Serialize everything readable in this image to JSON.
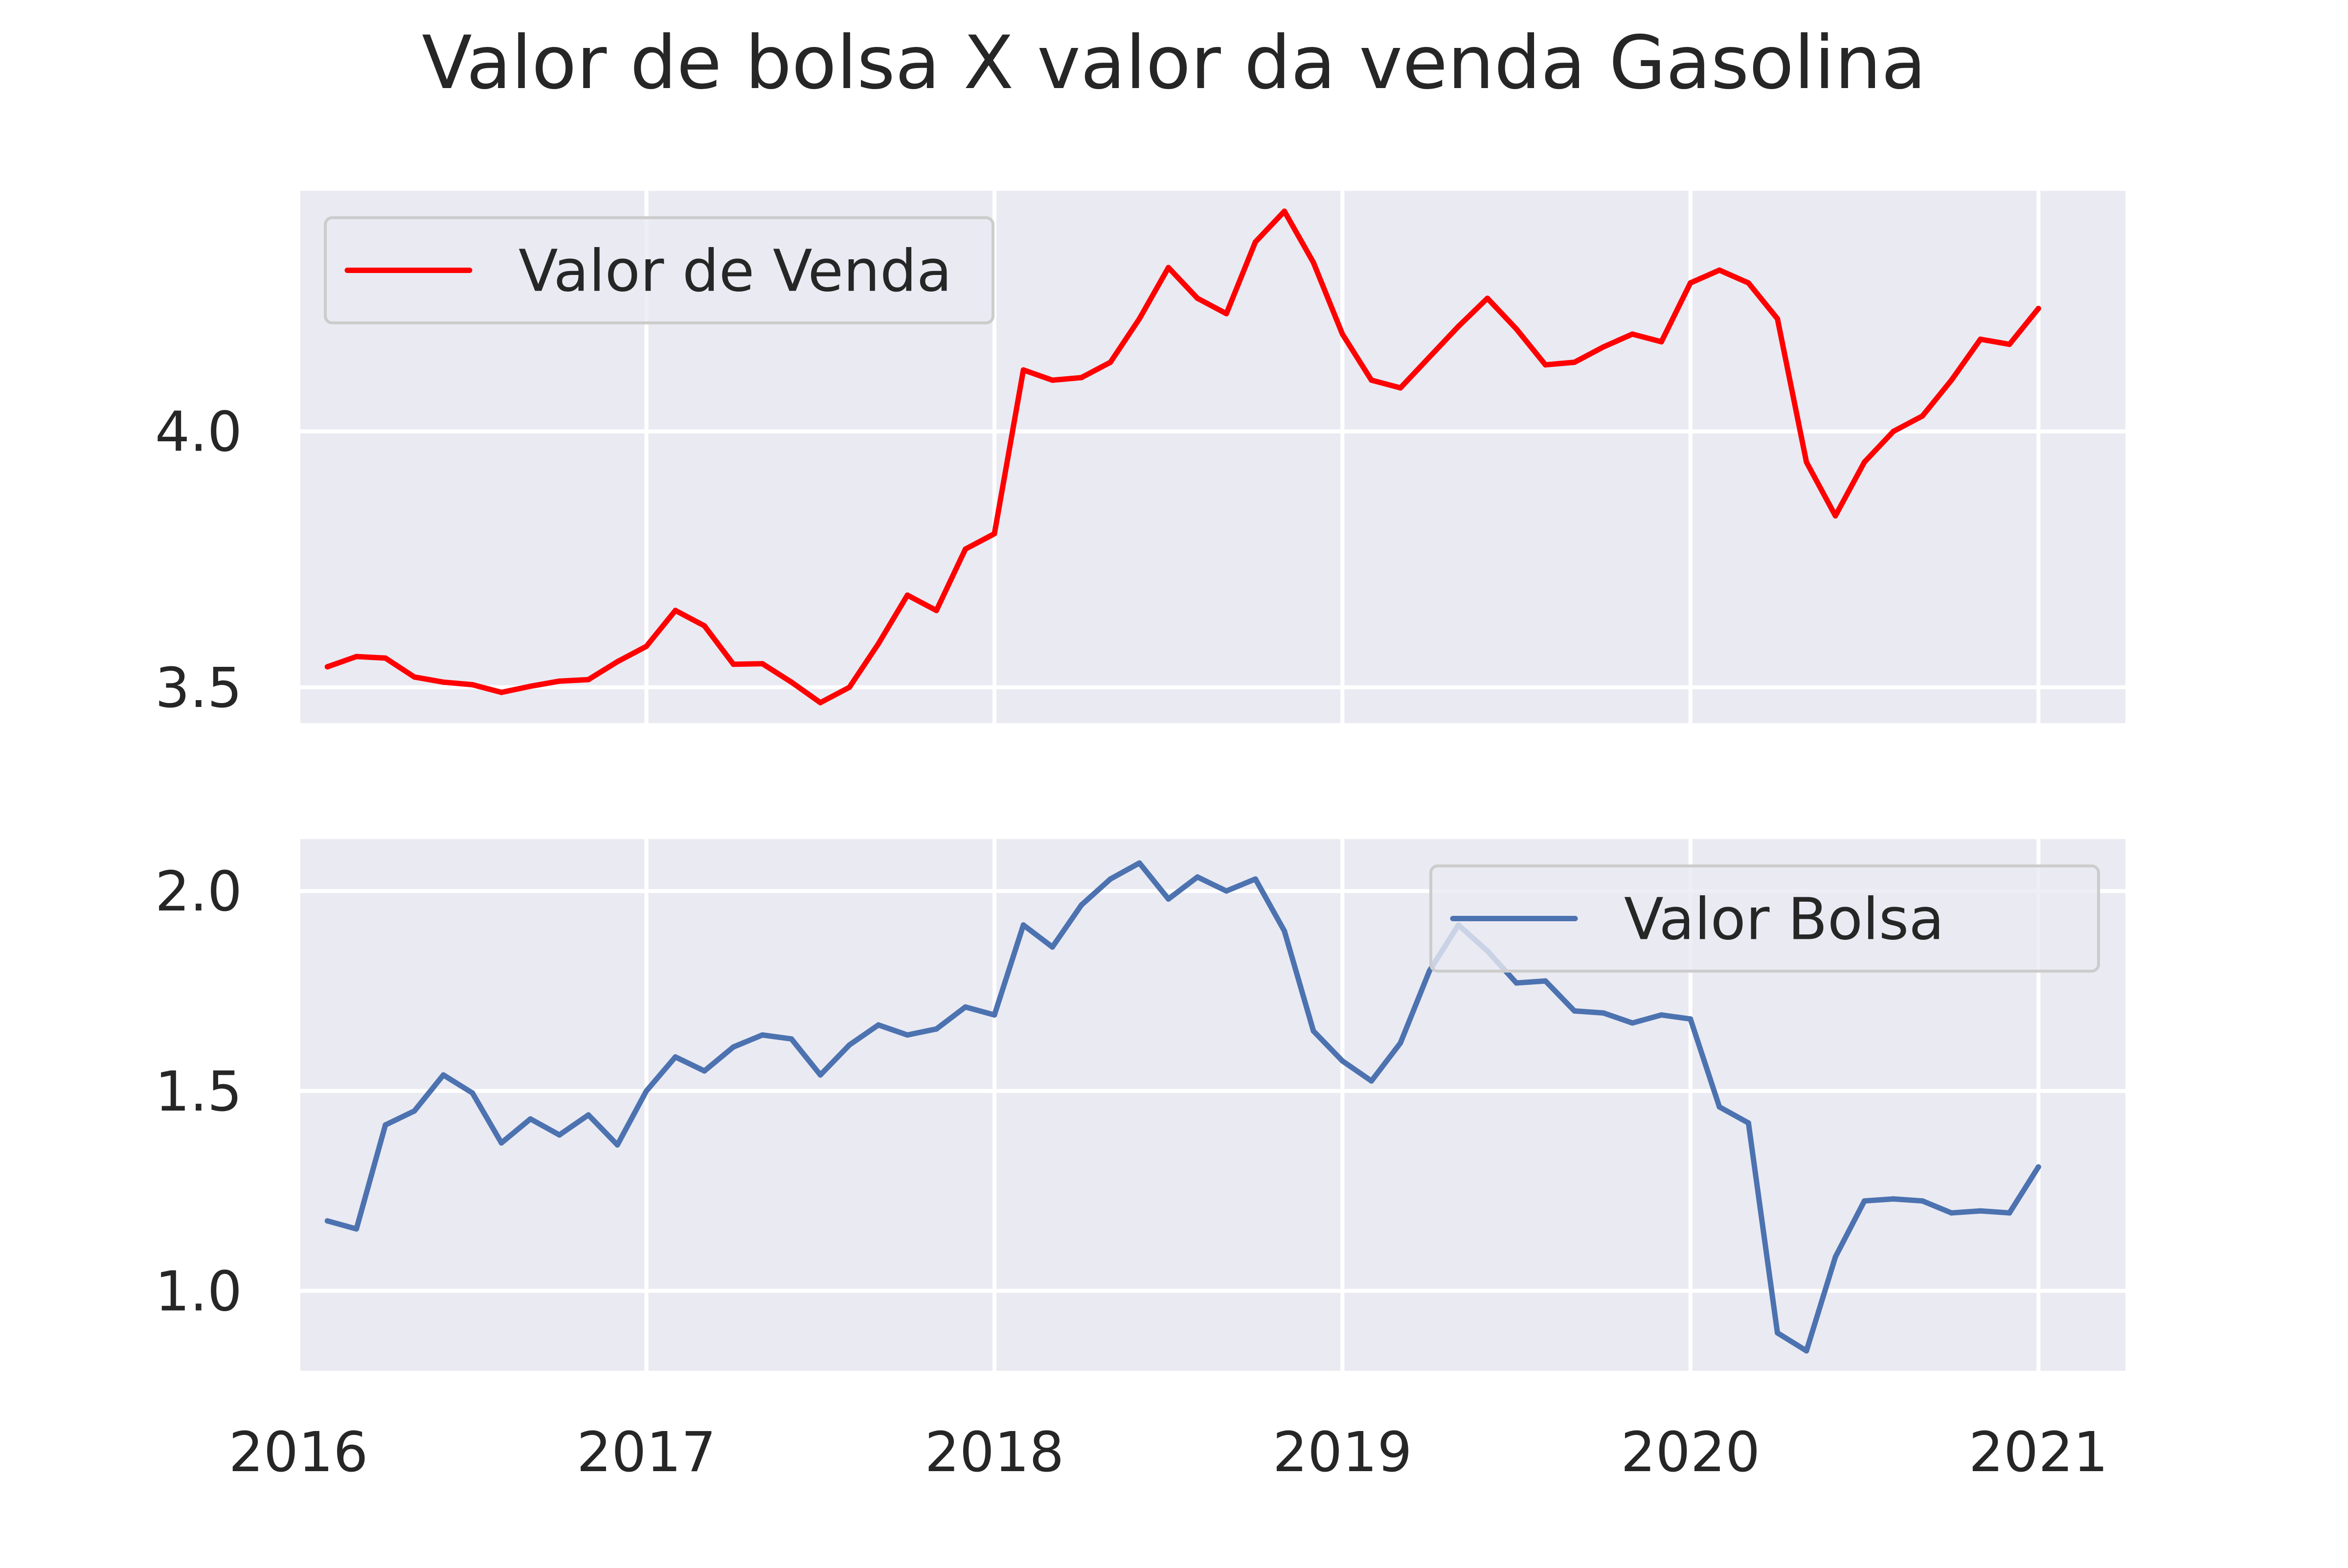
{
  "chart_data": {
    "type": "line",
    "title": "Valor de bolsa X valor da venda Gasolina",
    "x_ticks": [
      "2016",
      "2017",
      "2018",
      "2019",
      "2020",
      "2021"
    ],
    "x_start": "2016-02",
    "x_end": "2021-01",
    "x_step": "1 month",
    "x_range": [
      "2016-01",
      "2021-04"
    ],
    "grid": true,
    "background": "#eaeaf2",
    "subplots": [
      {
        "name": "venda",
        "ylim": [
          3.43,
          4.47
        ],
        "y_ticks": [
          "3.5",
          "4.0"
        ],
        "legend_position": "upper-left",
        "series": [
          {
            "name": "Valor de Venda",
            "color": "#ff0000",
            "values": [
              3.54,
              3.56,
              3.557,
              3.52,
              3.51,
              3.505,
              3.49,
              3.502,
              3.512,
              3.515,
              3.55,
              3.58,
              3.65,
              3.62,
              3.545,
              3.546,
              3.51,
              3.47,
              3.5,
              3.585,
              3.68,
              3.65,
              3.77,
              3.8,
              4.12,
              4.1,
              4.105,
              4.135,
              4.22,
              4.32,
              4.26,
              4.23,
              4.37,
              4.43,
              4.33,
              4.19,
              4.1,
              4.085,
              4.145,
              4.205,
              4.26,
              4.2,
              4.13,
              4.135,
              4.165,
              4.19,
              4.175,
              4.29,
              4.315,
              4.29,
              4.22,
              3.94,
              3.835,
              3.94,
              4.0,
              4.03,
              4.1,
              4.18,
              4.17,
              4.24
            ]
          }
        ]
      },
      {
        "name": "bolsa",
        "ylim": [
          0.8,
          2.13
        ],
        "y_ticks": [
          "1.0",
          "1.5",
          "2.0"
        ],
        "legend_position": "upper-right",
        "series": [
          {
            "name": "Valor Bolsa",
            "color": "#4c72b0",
            "values": [
              1.175,
              1.155,
              1.415,
              1.45,
              1.54,
              1.495,
              1.37,
              1.43,
              1.39,
              1.44,
              1.365,
              1.5,
              1.585,
              1.55,
              1.61,
              1.64,
              1.63,
              1.54,
              1.615,
              1.665,
              1.64,
              1.655,
              1.71,
              1.69,
              1.915,
              1.86,
              1.965,
              2.03,
              2.07,
              1.98,
              2.035,
              2.0,
              2.03,
              1.9,
              1.65,
              1.575,
              1.525,
              1.62,
              1.8,
              1.915,
              1.85,
              1.77,
              1.775,
              1.7,
              1.695,
              1.67,
              1.69,
              1.68,
              1.46,
              1.42,
              0.895,
              0.85,
              1.085,
              1.225,
              1.23,
              1.225,
              1.195,
              1.2,
              1.195,
              1.31
            ]
          }
        ]
      }
    ]
  }
}
